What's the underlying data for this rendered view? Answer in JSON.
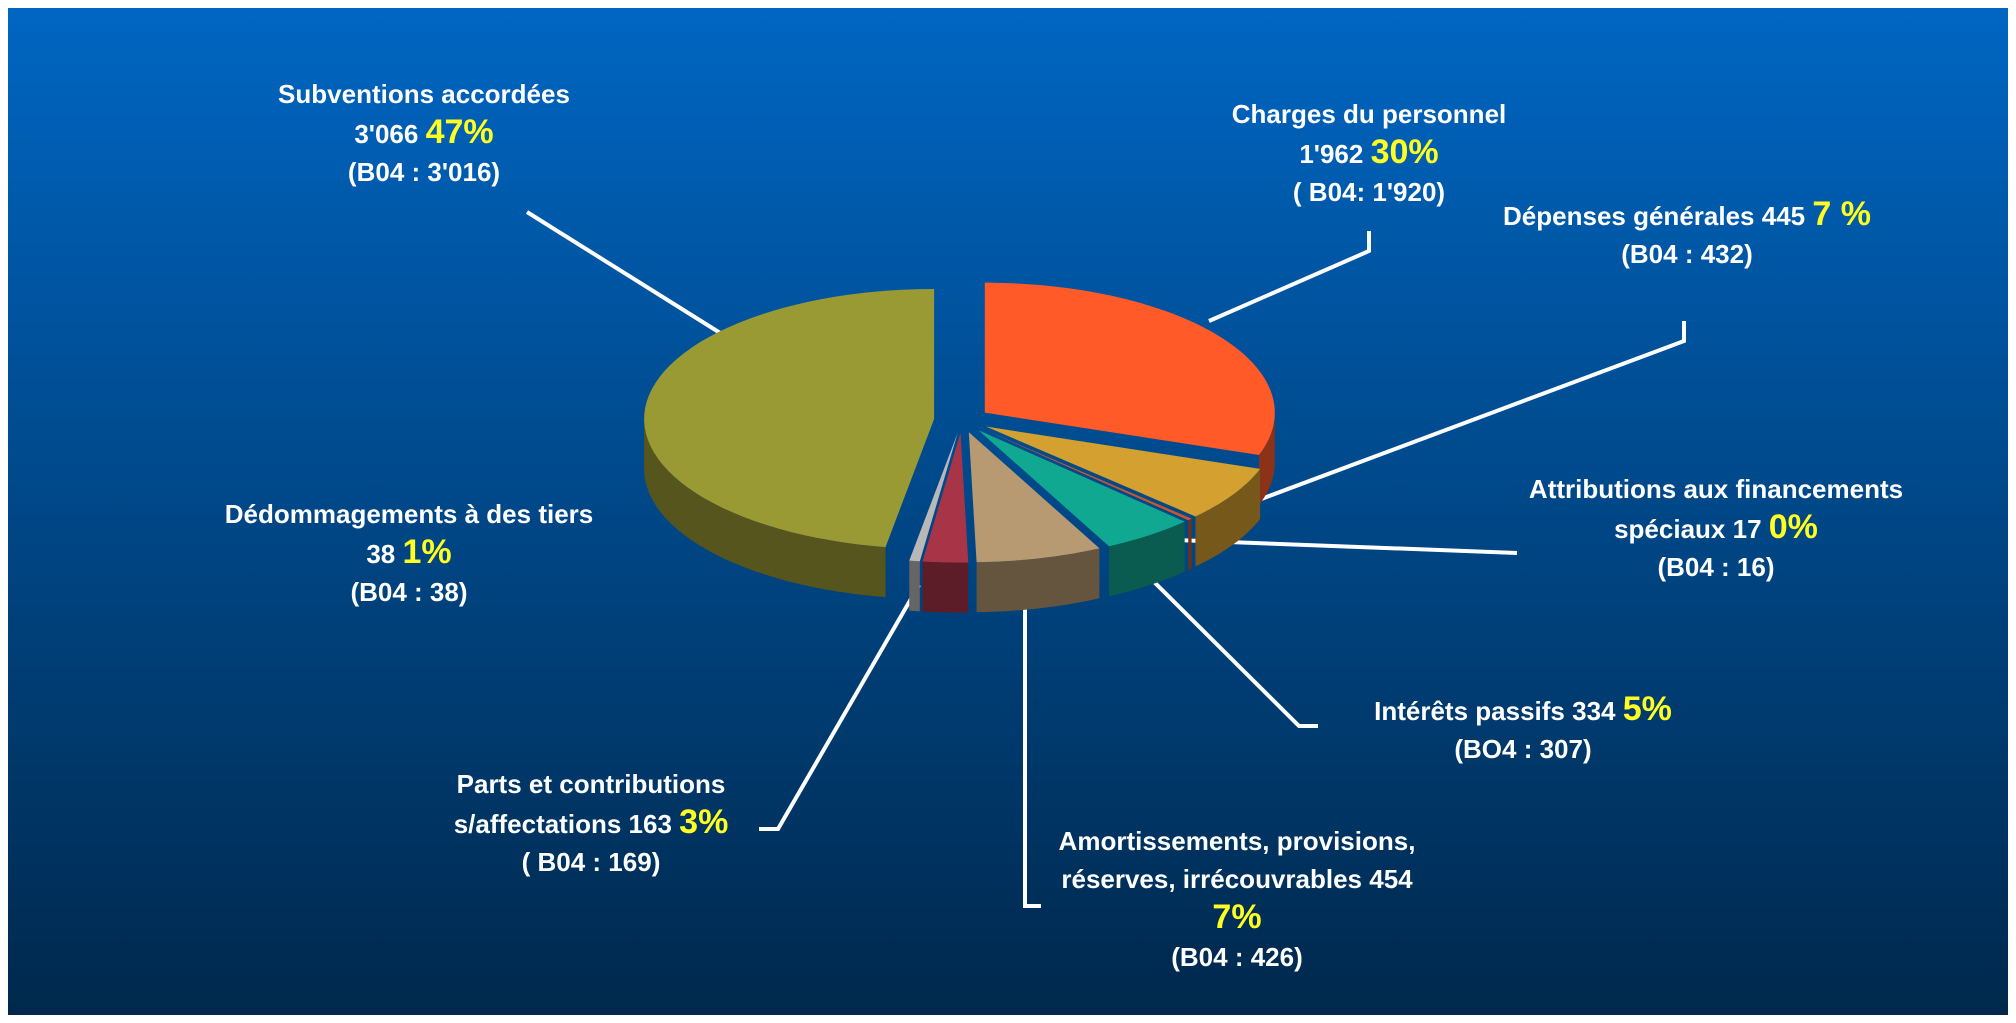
{
  "chart_data": {
    "type": "pie",
    "categories": [
      "Charges du personnel",
      "Dépenses générales",
      "Attributions aux financements spéciaux",
      "Intérêts passifs",
      "Amortissements, provisions, réserves, irrécouvrables",
      "Parts et contributions s/affectations",
      "Dédommagements à des tiers",
      "Subventions accordées"
    ],
    "values": [
      1962,
      445,
      17,
      334,
      454,
      163,
      38,
      3066
    ],
    "value_labels": [
      "1'962",
      "445",
      "17",
      "334",
      "454",
      "163",
      "38",
      "3'066"
    ],
    "percentages": [
      30,
      7,
      0,
      5,
      7,
      3,
      1,
      47
    ],
    "percentage_labels": [
      "30%",
      "7 %",
      "0%",
      "5%",
      "7%",
      "3%",
      "1%",
      "47%"
    ],
    "b04_labels": [
      "( B04: 1'920)",
      "(B04 : 432)",
      "(B04 : 16)",
      "(BO4 : 307)",
      "(B04 : 426)",
      "( B04 : 169)",
      "(B04 : 38)",
      "(B04 : 3'016)"
    ],
    "colors": [
      "#ff5a28",
      "#d4a030",
      "#c8582a",
      "#10a890",
      "#b89a72",
      "#a83448",
      "#b8b8b8",
      "#9a9a35"
    ]
  }
}
